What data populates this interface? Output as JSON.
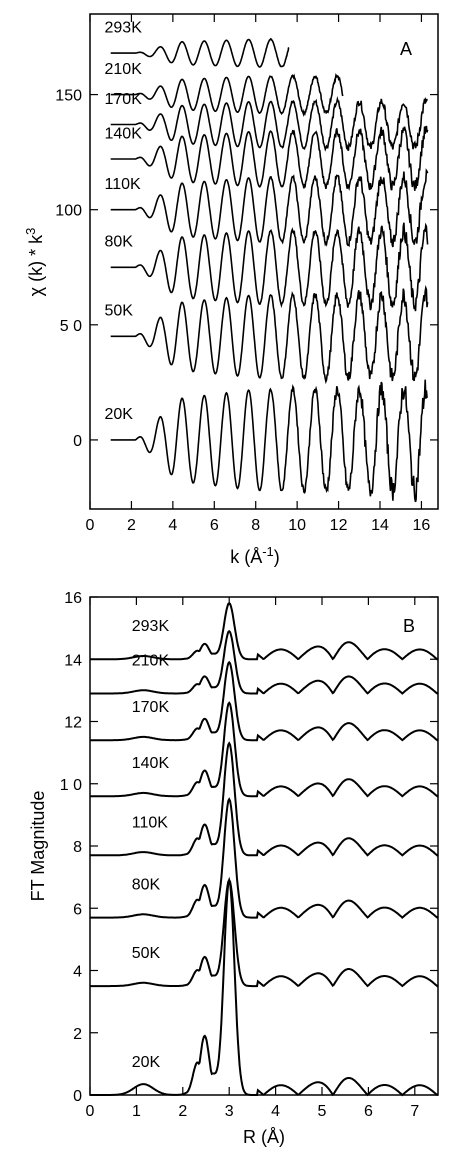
{
  "chart_data": [
    {
      "panel": "A",
      "type": "line",
      "xlabel_main": "k (Å",
      "xlabel_sup": "-1",
      "xlabel_end": ")",
      "ylabel_main": "χ (k) * k",
      "ylabel_sup": "3",
      "xlim": [
        0,
        16.8
      ],
      "ylim": [
        -30,
        185
      ],
      "xticks": [
        0,
        2,
        4,
        6,
        8,
        10,
        12,
        14,
        16
      ],
      "yticks": [
        0,
        50,
        100,
        150
      ],
      "ytick_labels": [
        "0",
        "5 0",
        "100",
        "150"
      ],
      "series": [
        {
          "name": "293K",
          "offset": 168,
          "k_end": 9.6,
          "amp": 6,
          "wave": "exafs"
        },
        {
          "name": "210K",
          "offset": 150,
          "k_end": 12.2,
          "amp": 8,
          "wave": "exafs"
        },
        {
          "name": "170K",
          "offset": 137,
          "k_end": 16.3,
          "amp": 10,
          "wave": "exafs"
        },
        {
          "name": "140K",
          "offset": 122,
          "k_end": 16.3,
          "amp": 12,
          "wave": "exafs"
        },
        {
          "name": "110K",
          "offset": 100,
          "k_end": 16.3,
          "amp": 14,
          "wave": "exafs"
        },
        {
          "name": "80K",
          "offset": 75,
          "k_end": 16.3,
          "amp": 16,
          "wave": "exafs"
        },
        {
          "name": "50K",
          "offset": 45,
          "k_end": 16.3,
          "amp": 18,
          "wave": "exafs"
        },
        {
          "name": "20K",
          "offset": 0,
          "k_end": 16.3,
          "amp": 22,
          "wave": "exafs"
        }
      ]
    },
    {
      "panel": "B",
      "type": "line",
      "xlabel_main": "R (Å)",
      "ylabel_main": "FT Magnitude",
      "xlim": [
        0,
        7.5
      ],
      "ylim": [
        0,
        16
      ],
      "xticks": [
        0,
        1,
        2,
        3,
        4,
        5,
        6,
        7
      ],
      "yticks": [
        0,
        2,
        4,
        6,
        8,
        10,
        12,
        14,
        16
      ],
      "ytick_labels": [
        "0",
        "2",
        "4",
        "6",
        "8",
        "1 0",
        "12",
        "14",
        "16"
      ],
      "series": [
        {
          "name": "293K",
          "offset": 14.0,
          "peak": 1.8
        },
        {
          "name": "210K",
          "offset": 12.9,
          "peak": 2.0
        },
        {
          "name": "170K",
          "offset": 11.4,
          "peak": 2.5
        },
        {
          "name": "140K",
          "offset": 9.6,
          "peak": 3.0
        },
        {
          "name": "110K",
          "offset": 7.7,
          "peak": 3.6
        },
        {
          "name": "80K",
          "offset": 5.7,
          "peak": 3.8
        },
        {
          "name": "50K",
          "offset": 3.5,
          "peak": 3.4
        },
        {
          "name": "20K",
          "offset": 0.0,
          "peak": 6.9
        }
      ]
    }
  ]
}
